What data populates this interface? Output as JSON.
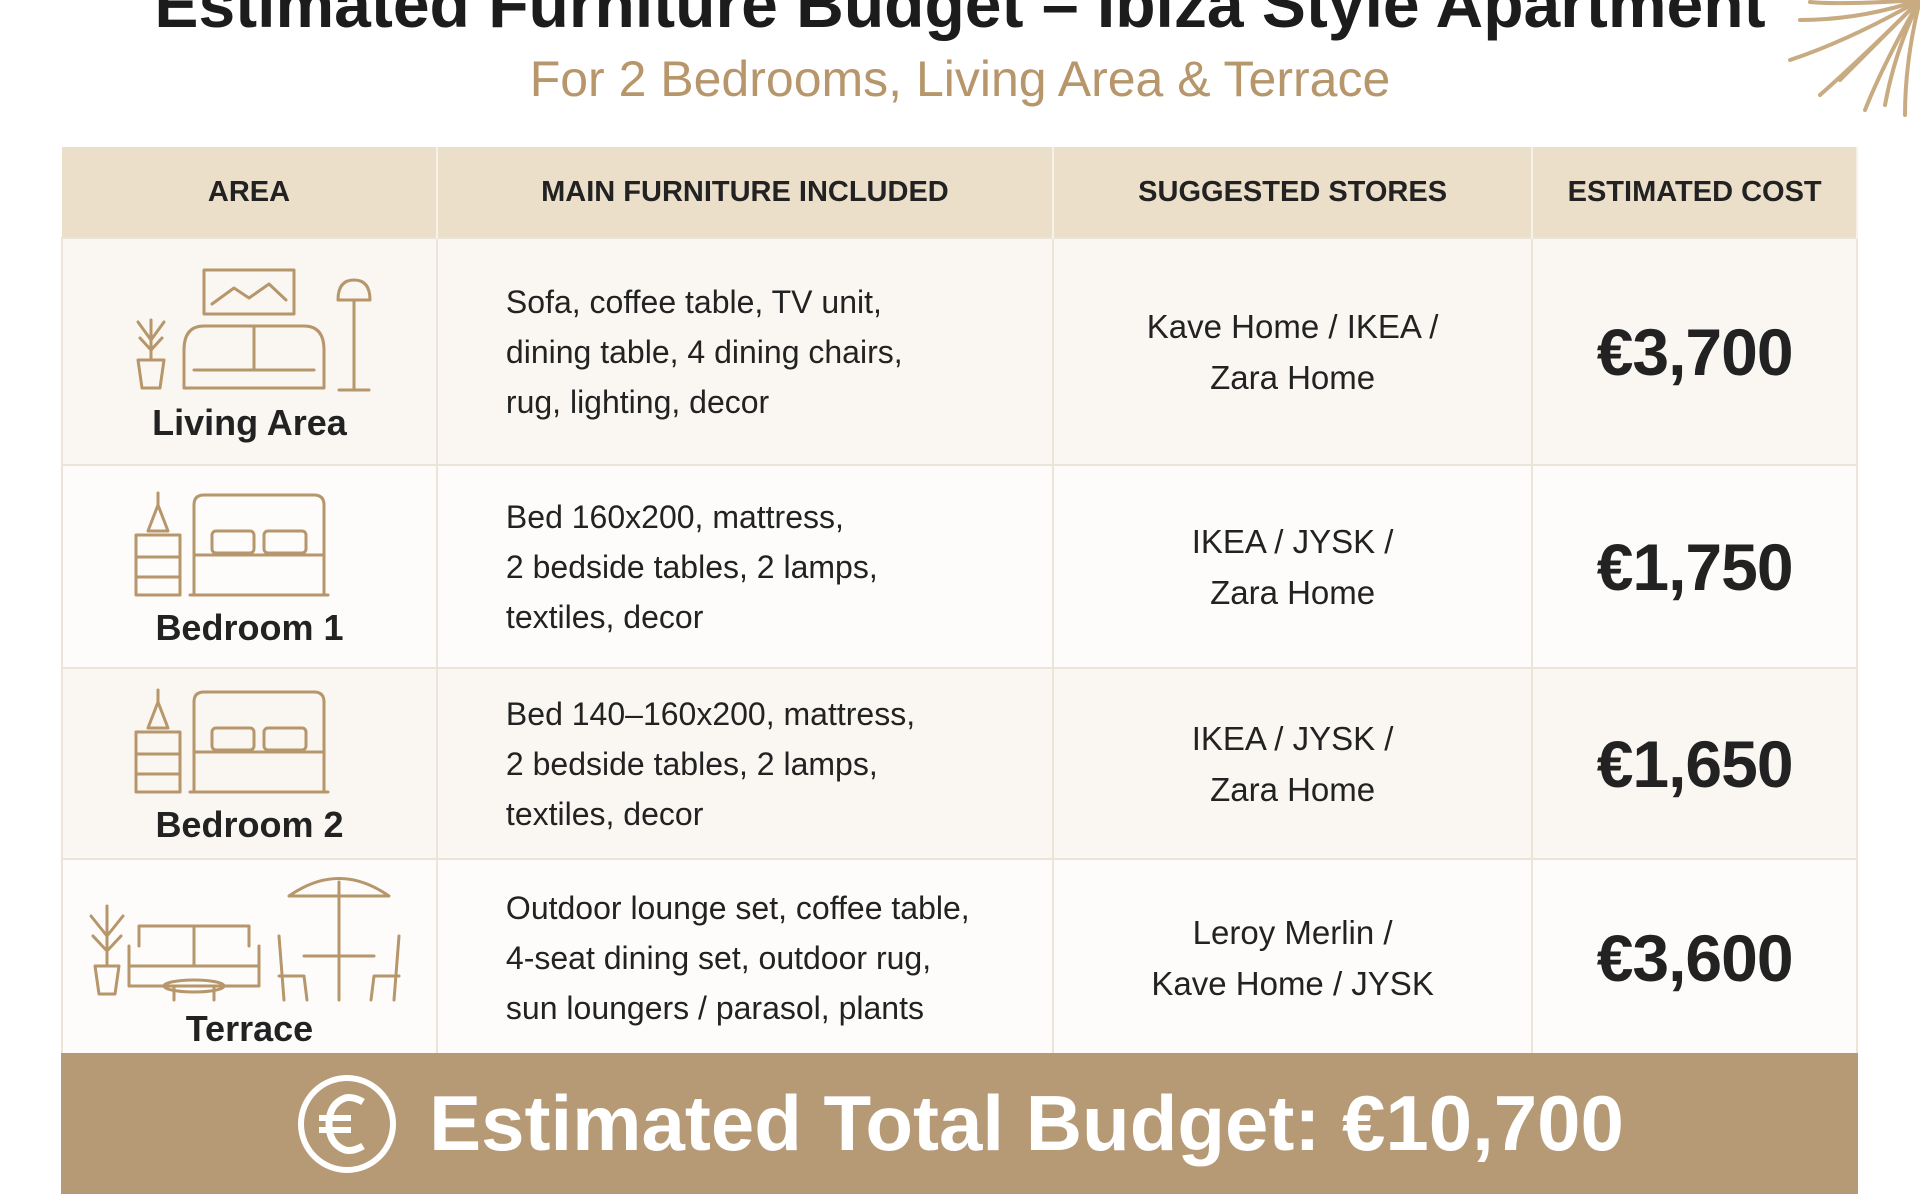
{
  "header": {
    "title": "Estimated Furniture Budget – Ibiza Style Apartment",
    "subtitle": "For 2 Bedrooms, Living Area & Terrace"
  },
  "table": {
    "columns": [
      "AREA",
      "MAIN FURNITURE INCLUDED",
      "SUGGESTED STORES",
      "ESTIMATED COST"
    ],
    "rows": [
      {
        "area": "Living Area",
        "furniture": [
          "Sofa, coffee table, TV unit,",
          "dining table, 4 dining chairs,",
          "rug, lighting, decor"
        ],
        "stores": [
          "Kave Home / IKEA /",
          "Zara Home"
        ],
        "cost": "€3,700"
      },
      {
        "area": "Bedroom 1",
        "furniture": [
          "Bed 160x200, mattress,",
          "2 bedside tables, 2 lamps,",
          "textiles, decor"
        ],
        "stores": [
          "IKEA / JYSK /",
          "Zara Home"
        ],
        "cost": "€1,750"
      },
      {
        "area": "Bedroom 2",
        "furniture": [
          "Bed 140–160x200, mattress,",
          "2 bedside tables, 2 lamps,",
          "textiles, decor"
        ],
        "stores": [
          "IKEA / JYSK /",
          "Zara Home"
        ],
        "cost": "€1,650"
      },
      {
        "area": "Terrace",
        "furniture": [
          "Outdoor lounge set, coffee table,",
          "4-seat dining set, outdoor rug,",
          "sun loungers / parasol, plants"
        ],
        "stores": [
          "Leroy Merlin /",
          "Kave Home / JYSK"
        ],
        "cost": "€3,600"
      }
    ]
  },
  "total": "Estimated Total Budget: €10,700"
}
